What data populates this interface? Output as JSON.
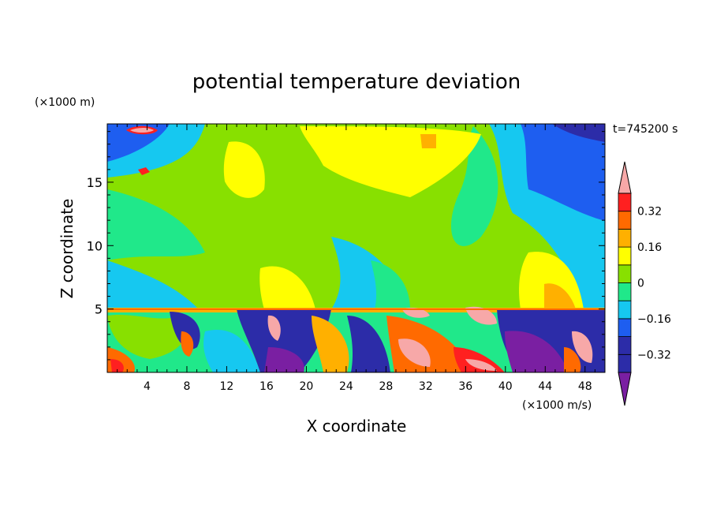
{
  "chart_data": {
    "type": "heatmap",
    "title": "potential temperature deviation",
    "xlabel": "X coordinate",
    "ylabel": "Z coordinate",
    "x_unit": "(×1000 m/s)",
    "y_unit": "(×1000 m)",
    "time_label": "t=745200 s",
    "xlim": [
      0,
      50
    ],
    "ylim": [
      0,
      19.6
    ],
    "x_ticks": [
      4,
      8,
      12,
      16,
      20,
      24,
      28,
      32,
      36,
      40,
      44,
      48
    ],
    "y_ticks": [
      5,
      10,
      15
    ],
    "colorbar": {
      "levels": [
        -0.4,
        -0.32,
        -0.24,
        -0.16,
        -0.08,
        0,
        0.08,
        0.16,
        0.24,
        0.32,
        0.4
      ],
      "tick_labels": [
        {
          "value": 0.32,
          "label": "0.32"
        },
        {
          "value": 0.16,
          "label": "0.16"
        },
        {
          "value": 0,
          "label": "0"
        },
        {
          "value": -0.16,
          "label": "−0.16"
        },
        {
          "value": -0.32,
          "label": "−0.32"
        }
      ],
      "colors": [
        "#7a1fa2",
        "#2c2ca8",
        "#1e5ef0",
        "#16c8f0",
        "#20e88a",
        "#88e000",
        "#ffff00",
        "#ffb000",
        "#ff6a00",
        "#ff2020",
        "#f7a8a8"
      ]
    }
  }
}
